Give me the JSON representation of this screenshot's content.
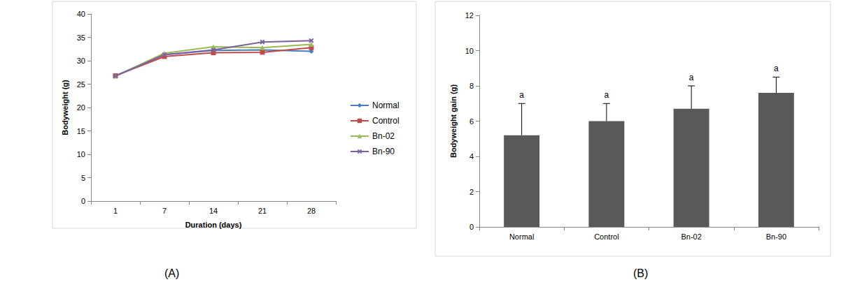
{
  "chart_data": [
    {
      "type": "line",
      "title": "(A)",
      "x_label": "Duration (days)",
      "y_label": "Bodyweight (g)",
      "categories": [
        "1",
        "7",
        "14",
        "21",
        "28"
      ],
      "series": [
        {
          "name": "Normal",
          "color": "#4a7ebb",
          "marker": "diamond",
          "values": [
            26.8,
            31.3,
            32.2,
            32.3,
            32.0
          ]
        },
        {
          "name": "Control",
          "color": "#be4b48",
          "marker": "square",
          "values": [
            26.8,
            30.9,
            31.7,
            31.8,
            32.8
          ]
        },
        {
          "name": "Bn-02",
          "color": "#98b954",
          "marker": "triangle",
          "values": [
            26.7,
            31.6,
            33.0,
            32.8,
            33.5
          ]
        },
        {
          "name": "Bn-90",
          "color": "#7d60a0",
          "marker": "x",
          "values": [
            26.7,
            31.3,
            32.3,
            34.0,
            34.3
          ]
        }
      ],
      "ylim": [
        0,
        40
      ],
      "yticks": [
        0,
        5,
        10,
        15,
        20,
        25,
        30,
        35,
        40
      ],
      "grid": false,
      "legend": "right"
    },
    {
      "type": "bar",
      "title": "(B)",
      "y_label": "Bodyweight gain (g)",
      "categories": [
        "Normal",
        "Control",
        "Bn-02",
        "Bn-90"
      ],
      "values": [
        5.2,
        6.0,
        6.7,
        7.6
      ],
      "errors": [
        1.8,
        1.0,
        1.3,
        0.9
      ],
      "annotations": [
        "a",
        "a",
        "a",
        "a"
      ],
      "color": "#595959",
      "ylim": [
        0,
        12
      ],
      "yticks": [
        0,
        2,
        4,
        6,
        8,
        10,
        12
      ],
      "grid": false
    }
  ]
}
